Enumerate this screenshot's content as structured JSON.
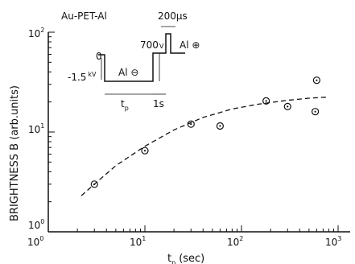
{
  "chart_data": {
    "type": "scatter",
    "title": "Au-PET-Al",
    "xlabel": "t",
    "xlabel_sub": "p",
    "xlabel_unit": "(sec)",
    "ylabel": "BRIGHTNESS B (arb.units)",
    "xscale": "log",
    "yscale": "log",
    "xlim": [
      1,
      1000
    ],
    "ylim": [
      1,
      100
    ],
    "x_ticks": [
      {
        "base": "10",
        "exp": "0"
      },
      {
        "base": "10",
        "exp": "1"
      },
      {
        "base": "10",
        "exp": "2"
      },
      {
        "base": "10",
        "exp": "3"
      }
    ],
    "y_ticks": [
      {
        "base": "10",
        "exp": "0"
      },
      {
        "base": "10",
        "exp": "1"
      },
      {
        "base": "10",
        "exp": "2"
      }
    ],
    "grid": false,
    "series": [
      {
        "marker": "circle-dot",
        "x": [
          3,
          10,
          30,
          60,
          180,
          300,
          580,
          600
        ],
        "y": [
          3.0,
          6.5,
          12.0,
          11.5,
          20.5,
          18.0,
          16.0,
          33.0
        ]
      }
    ],
    "fit_curve": {
      "style": "dashed",
      "x": [
        2.2,
        3,
        5,
        10,
        20,
        40,
        80,
        150,
        300,
        500,
        800
      ],
      "y": [
        2.3,
        3.0,
        4.6,
        7.2,
        10.5,
        14.0,
        17.0,
        19.0,
        20.8,
        21.8,
        22.4
      ]
    },
    "inset": {
      "voltages": {
        "zero": "0",
        "neg": "-1.5",
        "neg_unit": "kV",
        "pos": "700",
        "pos_unit": "V"
      },
      "labels": {
        "al_neg": "Al ⊖",
        "al_pos": "Al ⊕"
      },
      "times": {
        "pulse": "200μs",
        "tp": "t",
        "tp_sub": "p",
        "gap": "1s"
      }
    }
  }
}
